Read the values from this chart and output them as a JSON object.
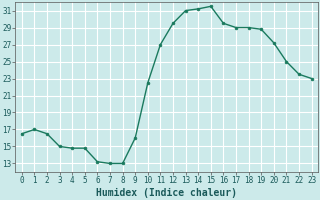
{
  "x": [
    0,
    1,
    2,
    3,
    4,
    5,
    6,
    7,
    8,
    9,
    10,
    11,
    12,
    13,
    14,
    15,
    16,
    17,
    18,
    19,
    20,
    21,
    22,
    23
  ],
  "y": [
    16.5,
    17.0,
    16.5,
    15.0,
    14.8,
    14.8,
    13.2,
    13.0,
    13.0,
    16.0,
    22.5,
    27.0,
    29.5,
    31.0,
    31.2,
    31.5,
    29.5,
    29.0,
    29.0,
    28.8,
    27.2,
    25.0,
    23.5,
    23.0
  ],
  "xlabel": "Humidex (Indice chaleur)",
  "line_color": "#1a7a5e",
  "marker": "o",
  "marker_size": 2.0,
  "line_width": 1.0,
  "bg_color": "#cceaea",
  "grid_color": "#ffffff",
  "ylim": [
    12,
    32
  ],
  "yticks": [
    13,
    15,
    17,
    19,
    21,
    23,
    25,
    27,
    29,
    31
  ],
  "xticks": [
    0,
    1,
    2,
    3,
    4,
    5,
    6,
    7,
    8,
    9,
    10,
    11,
    12,
    13,
    14,
    15,
    16,
    17,
    18,
    19,
    20,
    21,
    22,
    23
  ],
  "tick_fontsize": 5.5,
  "xlabel_fontsize": 7.0,
  "xlim": [
    -0.5,
    23.5
  ]
}
